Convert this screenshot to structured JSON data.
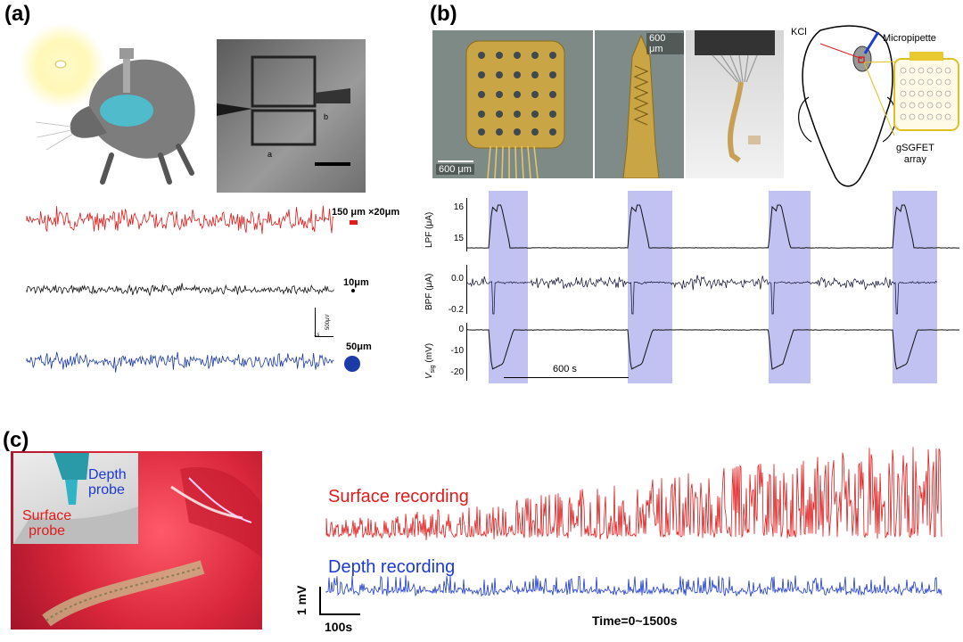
{
  "colors": {
    "red": "#e01b1b",
    "blue": "#1c3aa8",
    "shade": "#b7b7f0",
    "photo_red": "#d9263a"
  },
  "panel_a": {
    "label": "(a)",
    "traces": [
      {
        "name": "red",
        "label": "150 μm ×20μm",
        "color": "#e01b1b"
      },
      {
        "name": "black",
        "label": "10μm",
        "color": "#111111"
      },
      {
        "name": "blue",
        "label": "50μm",
        "color": "#1c3aa8"
      }
    ],
    "scalebar": {
      "time": "1s",
      "voltage": "500μV"
    },
    "micrograph": {
      "label_a": "a",
      "label_b": "b"
    }
  },
  "panel_b": {
    "label": "(b)",
    "scale_1": "600 μm",
    "scale_2": "600 μm",
    "skull": {
      "kcl": "KCl",
      "pipette": "Micropipette",
      "array": "gSGFET\narray"
    },
    "rows": [
      {
        "ylabel": "LPF (μA)",
        "ticks": [
          "16",
          "15"
        ]
      },
      {
        "ylabel": "BPF (μA)",
        "ticks": [
          "0.0",
          "-0.2"
        ]
      },
      {
        "ylabel": "V",
        "ylabel_sub": "sig",
        "ylabel_unit": " (mV)",
        "ticks": [
          "0",
          "-10",
          "-20"
        ]
      }
    ],
    "timebar": "600 s"
  },
  "panel_c": {
    "label": "(c)",
    "photo": {
      "depth": "Depth\nprobe",
      "surface": "Surface\nprobe"
    },
    "surface_label": "Surface recording",
    "depth_label": "Depth recording",
    "scale_v": "1 mV",
    "scale_t": "100s",
    "time_label": "Time=0~1500s"
  }
}
